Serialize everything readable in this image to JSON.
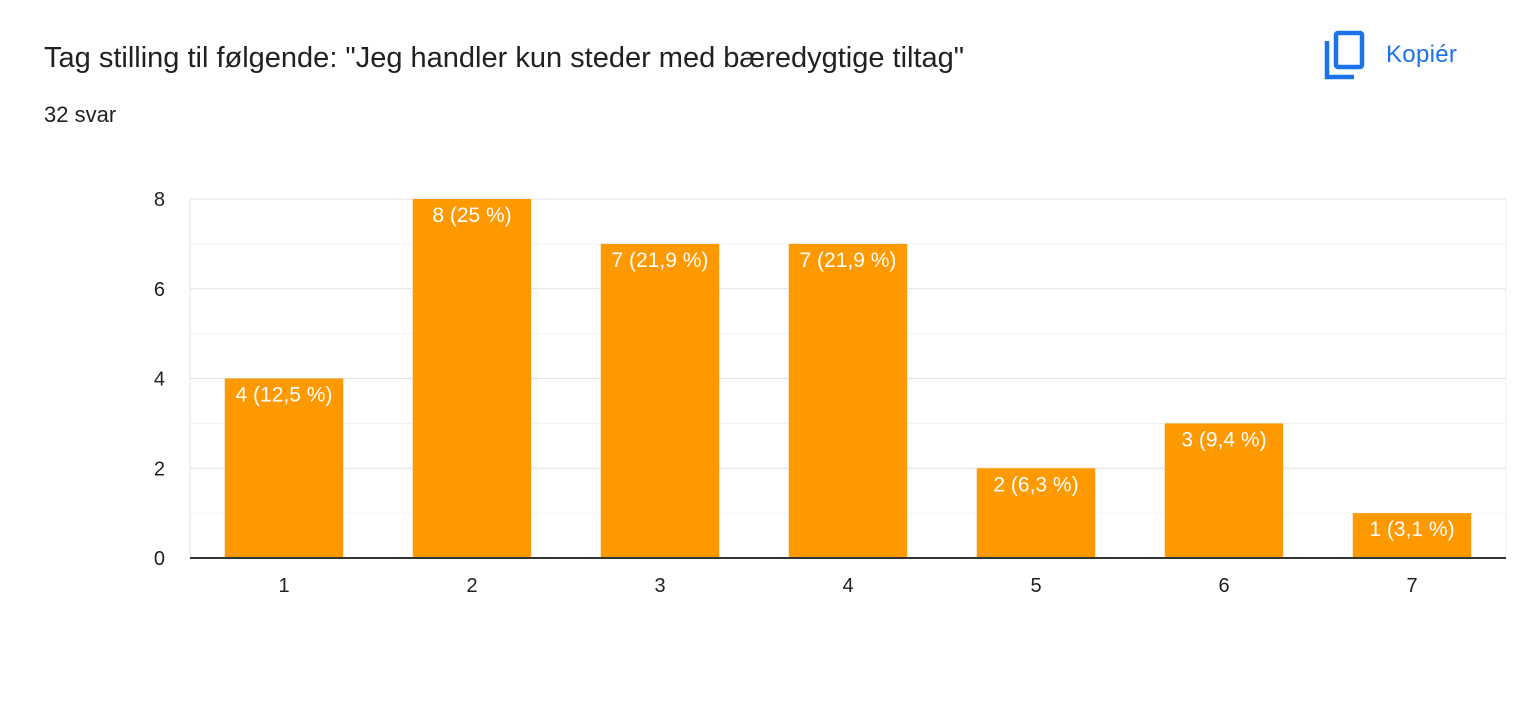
{
  "header": {
    "title": "Tag stilling til følgende: \"Jeg handler kun steder med bæredygtige tiltag\"",
    "response_count": "32 svar",
    "copy_label": "Kopiér",
    "copy_icon": "copy-icon",
    "accent_color": "#1a73e8"
  },
  "chart_data": {
    "type": "bar",
    "categories": [
      "1",
      "2",
      "3",
      "4",
      "5",
      "6",
      "7"
    ],
    "values": [
      4,
      8,
      7,
      7,
      2,
      3,
      1
    ],
    "data_labels": [
      "4 (12,5 %)",
      "8 (25 %)",
      "7 (21,9 %)",
      "7 (21,9 %)",
      "2 (6,3 %)",
      "3 (9,4 %)",
      "1 (3,1 %)"
    ],
    "y_ticks": [
      0,
      2,
      4,
      6,
      8
    ],
    "ylim": [
      0,
      8
    ],
    "grid": true,
    "bar_color": "#ff9900"
  }
}
